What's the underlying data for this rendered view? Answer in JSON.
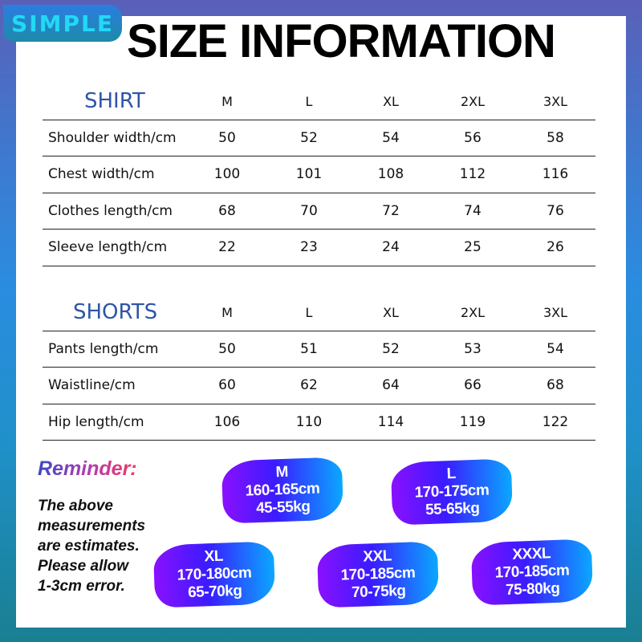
{
  "brand": "SIMPLE",
  "title": "SIZE INFORMATION",
  "shirt": {
    "section": "SHIRT",
    "sizes": [
      "M",
      "L",
      "XL",
      "2XL",
      "3XL"
    ],
    "rows": [
      {
        "label": "Shoulder width/cm",
        "values": [
          "50",
          "52",
          "54",
          "56",
          "58"
        ]
      },
      {
        "label": "Chest width/cm",
        "values": [
          "100",
          "101",
          "108",
          "112",
          "116"
        ]
      },
      {
        "label": "Clothes length/cm",
        "values": [
          "68",
          "70",
          "72",
          "74",
          "76"
        ]
      },
      {
        "label": "Sleeve length/cm",
        "values": [
          "22",
          "23",
          "24",
          "25",
          "26"
        ]
      }
    ]
  },
  "shorts": {
    "section": "SHORTS",
    "sizes": [
      "M",
      "L",
      "XL",
      "2XL",
      "3XL"
    ],
    "rows": [
      {
        "label": "Pants length/cm",
        "values": [
          "50",
          "51",
          "52",
          "53",
          "54"
        ]
      },
      {
        "label": "Waistline/cm",
        "values": [
          "60",
          "62",
          "64",
          "66",
          "68"
        ]
      },
      {
        "label": "Hip length/cm",
        "values": [
          "106",
          "110",
          "114",
          "119",
          "122"
        ]
      }
    ]
  },
  "reminder": {
    "title": "Reminder:",
    "lines": [
      "The above",
      "measurements",
      "are estimates.",
      "Please allow",
      "1-3cm error."
    ]
  },
  "badges": [
    {
      "size": "M",
      "height": "160-165cm",
      "weight": "45-55kg"
    },
    {
      "size": "L",
      "height": "170-175cm",
      "weight": "55-65kg"
    },
    {
      "size": "XL",
      "height": "170-180cm",
      "weight": "65-70kg"
    },
    {
      "size": "XXL",
      "height": "170-185cm",
      "weight": "70-75kg"
    },
    {
      "size": "XXXL",
      "height": "170-185cm",
      "weight": "75-80kg"
    }
  ],
  "colors": {
    "section_heading": "#2d55a8",
    "badge_gradient_start": "#8a10ff",
    "badge_gradient_end": "#0aa8ff",
    "brand_text": "#22d8f6"
  }
}
